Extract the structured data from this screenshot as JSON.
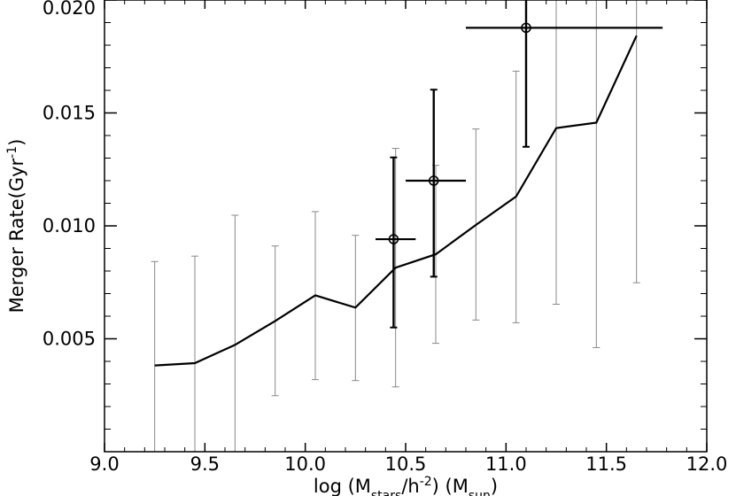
{
  "chart_data": {
    "type": "line",
    "xlabel": {
      "prefix": "log (M",
      "sub1": "stars",
      "mid": "/h",
      "sup": "-2",
      "mid2": ") (M",
      "sub2": "sun",
      "suffix": ")"
    },
    "ylabel": {
      "prefix": "Merger Rate(Gyr",
      "sup": "-1",
      "suffix": ")"
    },
    "xlim": [
      9.0,
      12.0
    ],
    "ylim": [
      0.0,
      0.02
    ],
    "x_ticks": [
      {
        "value": 9.0,
        "label": "9.0"
      },
      {
        "value": 9.5,
        "label": "9.5"
      },
      {
        "value": 10.0,
        "label": "10.0"
      },
      {
        "value": 10.5,
        "label": "10.5"
      },
      {
        "value": 11.0,
        "label": "11.0"
      },
      {
        "value": 11.5,
        "label": "11.5"
      },
      {
        "value": 12.0,
        "label": "12.0"
      }
    ],
    "y_ticks": [
      {
        "value": 0.005,
        "label": "0.005"
      },
      {
        "value": 0.01,
        "label": "0.010"
      },
      {
        "value": 0.015,
        "label": "0.015"
      },
      {
        "value": 0.02,
        "label": "0.020"
      }
    ],
    "grid": false,
    "series": [
      {
        "style": "line-with-gray-errorbars",
        "color": "#000000",
        "errorbar_color": "#888888",
        "points": [
          {
            "x": 9.25,
            "y": 0.00382,
            "ylow": 0.0,
            "yhigh": 0.00842
          },
          {
            "x": 9.45,
            "y": 0.00392,
            "ylow": 0.0,
            "yhigh": 0.00866
          },
          {
            "x": 9.65,
            "y": 0.00473,
            "ylow": 0.0,
            "yhigh": 0.01047
          },
          {
            "x": 9.85,
            "y": 0.00579,
            "ylow": 0.00248,
            "yhigh": 0.00911
          },
          {
            "x": 10.05,
            "y": 0.00692,
            "ylow": 0.00319,
            "yhigh": 0.01063
          },
          {
            "x": 10.25,
            "y": 0.00638,
            "ylow": 0.00315,
            "yhigh": 0.00958
          },
          {
            "x": 10.45,
            "y": 0.00815,
            "ylow": 0.00287,
            "yhigh": 0.01343
          },
          {
            "x": 10.65,
            "y": 0.00874,
            "ylow": 0.0048,
            "yhigh": 0.01268
          },
          {
            "x": 10.85,
            "y": 0.01004,
            "ylow": 0.00583,
            "yhigh": 0.01429
          },
          {
            "x": 11.05,
            "y": 0.0113,
            "ylow": 0.00571,
            "yhigh": 0.01685
          },
          {
            "x": 11.25,
            "y": 0.01433,
            "ylow": 0.00653,
            "yhigh": 0.02
          },
          {
            "x": 11.45,
            "y": 0.01457,
            "ylow": 0.00461,
            "yhigh": 0.02
          },
          {
            "x": 11.65,
            "y": 0.01842,
            "ylow": 0.00748,
            "yhigh": 0.02
          }
        ]
      },
      {
        "style": "circles-with-xy-errorbars",
        "color": "#000000",
        "points": [
          {
            "x": 10.44,
            "y": 0.00941,
            "xlow": 10.35,
            "xhigh": 10.55,
            "ylow": 0.0055,
            "yhigh": 0.01303
          },
          {
            "x": 10.64,
            "y": 0.012,
            "xlow": 10.5,
            "xhigh": 10.8,
            "ylow": 0.00775,
            "yhigh": 0.01603
          },
          {
            "x": 11.1,
            "y": 0.01877,
            "xlow": 10.8,
            "xhigh": 11.78,
            "ylow": 0.0135,
            "yhigh": 0.02
          }
        ]
      }
    ]
  }
}
